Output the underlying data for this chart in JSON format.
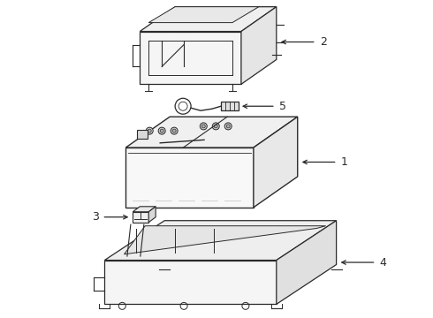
{
  "background_color": "#ffffff",
  "line_color": "#2a2a2a",
  "label_color": "#000000",
  "fig_width": 4.9,
  "fig_height": 3.6,
  "dpi": 100
}
